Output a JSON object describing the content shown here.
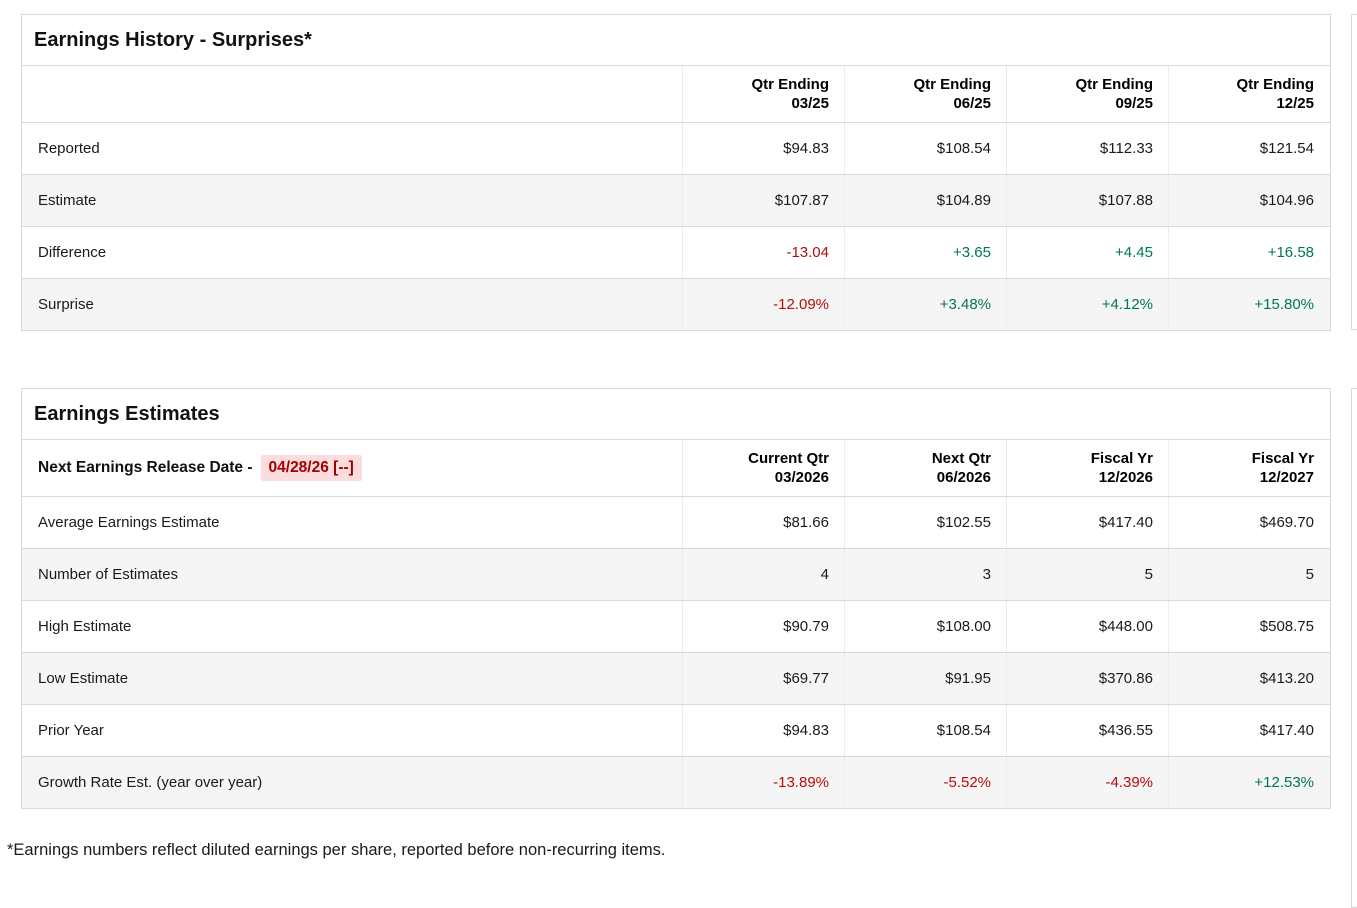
{
  "colors": {
    "negative": "#b80c0c",
    "positive": "#00784e",
    "highlight_bg": "#fbdddd",
    "highlight_text": "#a50000",
    "border": "#d9d9d9",
    "row_alt": "#f5f5f5"
  },
  "surprises": {
    "title": "Earnings History - Surprises*",
    "columns": [
      {
        "l1": "Qtr Ending",
        "l2": "03/25"
      },
      {
        "l1": "Qtr Ending",
        "l2": "06/25"
      },
      {
        "l1": "Qtr Ending",
        "l2": "09/25"
      },
      {
        "l1": "Qtr Ending",
        "l2": "12/25"
      }
    ],
    "rows": [
      {
        "label": "Reported",
        "values": [
          "$94.83",
          "$108.54",
          "$112.33",
          "$121.54"
        ]
      },
      {
        "label": "Estimate",
        "values": [
          "$107.87",
          "$104.89",
          "$107.88",
          "$104.96"
        ]
      },
      {
        "label": "Difference",
        "values": [
          "-13.04",
          "+3.65",
          "+4.45",
          "+16.58"
        ]
      },
      {
        "label": "Surprise",
        "values": [
          "-12.09%",
          "+3.48%",
          "+4.12%",
          "+15.80%"
        ]
      }
    ]
  },
  "estimates": {
    "title": "Earnings Estimates",
    "release_date_label": "Next Earnings Release Date -",
    "release_date_value": "04/28/26 [--]",
    "columns": [
      {
        "l1": "Current Qtr",
        "l2": "03/2026"
      },
      {
        "l1": "Next Qtr",
        "l2": "06/2026"
      },
      {
        "l1": "Fiscal Yr",
        "l2": "12/2026"
      },
      {
        "l1": "Fiscal Yr",
        "l2": "12/2027"
      }
    ],
    "rows": [
      {
        "label": "Average Earnings Estimate",
        "values": [
          "$81.66",
          "$102.55",
          "$417.40",
          "$469.70"
        ]
      },
      {
        "label": "Number of Estimates",
        "values": [
          "4",
          "3",
          "5",
          "5"
        ]
      },
      {
        "label": "High Estimate",
        "values": [
          "$90.79",
          "$108.00",
          "$448.00",
          "$508.75"
        ]
      },
      {
        "label": "Low Estimate",
        "values": [
          "$69.77",
          "$91.95",
          "$370.86",
          "$413.20"
        ]
      },
      {
        "label": "Prior Year",
        "values": [
          "$94.83",
          "$108.54",
          "$436.55",
          "$417.40"
        ]
      },
      {
        "label": "Growth Rate Est. (year over year)",
        "values": [
          "-13.89%",
          "-5.52%",
          "-4.39%",
          "+12.53%"
        ]
      }
    ]
  },
  "footnote": "*Earnings numbers reflect diluted earnings per share, reported before non-recurring items."
}
